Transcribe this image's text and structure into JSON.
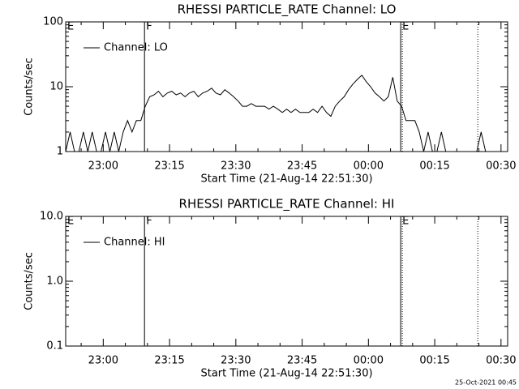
{
  "chart_data": [
    {
      "type": "line",
      "title": "RHESSI PARTICLE_RATE Channel: LO",
      "xlabel": "Start Time (21-Aug-14 22:51:30)",
      "ylabel": "Counts/sec",
      "log_y": true,
      "legend": "top-left",
      "xlim": [
        0,
        6000
      ],
      "xticks": [
        {
          "value": 510,
          "label": "23:00"
        },
        {
          "value": 1410,
          "label": "23:15"
        },
        {
          "value": 2310,
          "label": "23:30"
        },
        {
          "value": 3210,
          "label": "23:45"
        },
        {
          "value": 4110,
          "label": "00:00"
        },
        {
          "value": 5010,
          "label": "00:15"
        },
        {
          "value": 5910,
          "label": "00:30"
        }
      ],
      "ylim": [
        1,
        100
      ],
      "yticks": [
        1,
        10,
        100
      ],
      "events": [
        {
          "label": "E",
          "x": 0
        },
        {
          "label": "F",
          "x": 1070
        },
        {
          "label": "E",
          "x": 4548
        }
      ],
      "dotted_lines": [
        4570,
        5595
      ],
      "x": [
        0,
        60,
        120,
        180,
        240,
        300,
        360,
        420,
        480,
        540,
        600,
        660,
        720,
        780,
        840,
        900,
        960,
        1020,
        1080,
        1140,
        1200,
        1260,
        1320,
        1380,
        1440,
        1500,
        1560,
        1620,
        1680,
        1740,
        1800,
        1860,
        1920,
        1980,
        2040,
        2100,
        2160,
        2220,
        2280,
        2340,
        2400,
        2460,
        2520,
        2580,
        2640,
        2700,
        2760,
        2820,
        2880,
        2940,
        3000,
        3060,
        3120,
        3180,
        3240,
        3300,
        3360,
        3420,
        3480,
        3540,
        3600,
        3660,
        3720,
        3780,
        3840,
        3900,
        3960,
        4020,
        4080,
        4140,
        4200,
        4260,
        4320,
        4380,
        4440,
        4500,
        4560,
        4620,
        4680,
        4740,
        4800,
        4860,
        4920,
        4980,
        5040,
        5100,
        5160,
        5220,
        5280,
        5340,
        5400,
        5460,
        5520,
        5580,
        5640,
        5700,
        5760,
        5820,
        5880,
        5940
      ],
      "series": [
        {
          "name": "Channel: LO",
          "color": "#000000",
          "values": [
            1,
            2,
            1,
            1,
            2,
            1,
            2,
            1,
            1,
            2,
            1,
            2,
            1,
            2,
            3,
            2,
            3,
            3,
            5,
            7,
            7.5,
            8.5,
            7,
            8,
            8.5,
            7.5,
            8,
            7,
            8,
            8.5,
            7,
            8,
            8.5,
            9.5,
            8,
            7.5,
            9,
            8,
            7,
            6,
            5,
            5,
            5.5,
            5,
            5,
            5,
            4.5,
            5,
            4.5,
            4,
            4.5,
            4,
            4.5,
            4,
            4,
            4,
            4.5,
            4,
            5,
            4,
            3.5,
            5,
            6,
            7,
            9,
            11,
            13,
            15,
            12,
            10,
            8,
            7,
            6,
            7,
            14,
            6,
            5,
            3,
            3,
            3,
            2,
            1,
            2,
            1,
            1,
            2,
            1,
            1,
            1,
            1,
            1,
            1,
            1,
            1,
            2,
            1,
            1,
            1,
            1,
            1
          ]
        }
      ]
    },
    {
      "type": "line",
      "title": "RHESSI PARTICLE_RATE Channel: HI",
      "xlabel": "Start Time (21-Aug-14 22:51:30)",
      "ylabel": "Counts/sec",
      "log_y": true,
      "legend": "top-left",
      "xlim": [
        0,
        6000
      ],
      "xticks": [
        {
          "value": 510,
          "label": "23:00"
        },
        {
          "value": 1410,
          "label": "23:15"
        },
        {
          "value": 2310,
          "label": "23:30"
        },
        {
          "value": 3210,
          "label": "23:45"
        },
        {
          "value": 4110,
          "label": "00:00"
        },
        {
          "value": 5010,
          "label": "00:15"
        },
        {
          "value": 5910,
          "label": "00:30"
        }
      ],
      "ylim": [
        0.1,
        10
      ],
      "yticks": [
        0.1,
        {
          "value": 1,
          "label": "1.0"
        },
        {
          "value": 10,
          "label": "10.0"
        }
      ],
      "events": [
        {
          "label": "E",
          "x": 0
        },
        {
          "label": "F",
          "x": 1070
        },
        {
          "label": "E",
          "x": 4548
        }
      ],
      "dotted_lines": [
        4570,
        5595
      ],
      "x": [],
      "series": [
        {
          "name": "Channel: HI",
          "color": "#000000",
          "values": []
        }
      ]
    }
  ],
  "footer": "25-Oct-2021 00:45"
}
